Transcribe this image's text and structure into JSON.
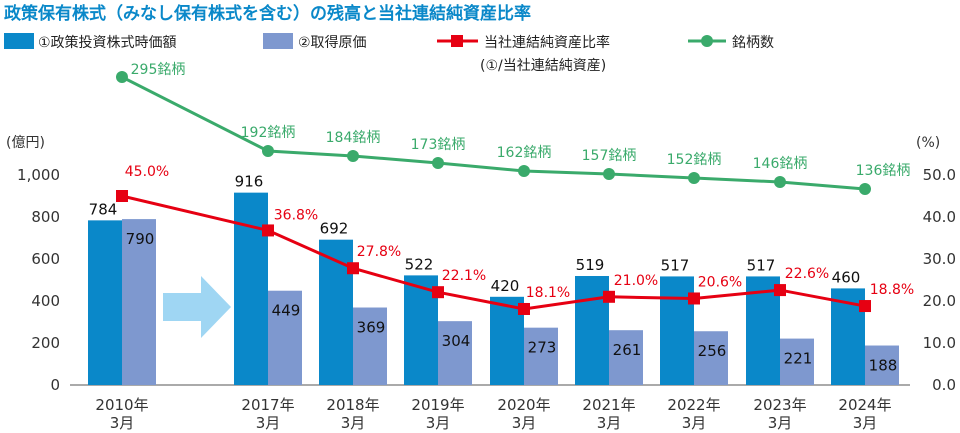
{
  "chart_data": {
    "type": "bar",
    "title": "政策保有株式（みなし保有株式を含む）の残高と当社連結純資産比率",
    "categories": [
      [
        "2010年",
        "3月"
      ],
      [
        "2017年",
        "3月"
      ],
      [
        "2018年",
        "3月"
      ],
      [
        "2019年",
        "3月"
      ],
      [
        "2020年",
        "3月"
      ],
      [
        "2021年",
        "3月"
      ],
      [
        "2022年",
        "3月"
      ],
      [
        "2023年",
        "3月"
      ],
      [
        "2024年",
        "3月"
      ]
    ],
    "left_axis": {
      "label": "(億円)",
      "ylim": [
        0,
        1000
      ],
      "ticks": [
        "0",
        "200",
        "400",
        "600",
        "800",
        "1,000"
      ]
    },
    "right_axis": {
      "label": "(%)",
      "ylim": [
        0,
        50
      ],
      "ticks": [
        "0.0",
        "10.0",
        "20.0",
        "30.0",
        "40.0",
        "50.0"
      ]
    },
    "series": [
      {
        "name": "①政策投資株式時価額",
        "kind": "bar",
        "color": "#0a88c9",
        "values": [
          784,
          916,
          692,
          522,
          420,
          519,
          517,
          517,
          460
        ],
        "labels": [
          "784",
          "916",
          "692",
          "522",
          "420",
          "519",
          "517",
          "517",
          "460"
        ]
      },
      {
        "name": "②取得原価",
        "kind": "bar",
        "color": "#7e98cf",
        "values": [
          790,
          449,
          369,
          304,
          273,
          261,
          256,
          221,
          188
        ],
        "labels": [
          "790",
          "449",
          "369",
          "304",
          "273",
          "261",
          "256",
          "221",
          "188"
        ]
      },
      {
        "name": "当社連結純資産比率",
        "name_line2": "(①/当社連結純資産)",
        "kind": "line",
        "axis": "right",
        "color": "#e60012",
        "values": [
          45.0,
          36.8,
          27.8,
          22.1,
          18.1,
          21.0,
          20.6,
          22.6,
          18.8
        ],
        "labels": [
          "45.0%",
          "36.8%",
          "27.8%",
          "22.1%",
          "18.1%",
          "21.0%",
          "20.6%",
          "22.6%",
          "18.8%"
        ]
      },
      {
        "name": "銘柄数",
        "kind": "line",
        "axis": "none",
        "color": "#3aaa6b",
        "values": [
          295,
          192,
          184,
          173,
          162,
          157,
          152,
          146,
          136
        ],
        "labels": [
          "295銘柄",
          "192銘柄",
          "184銘柄",
          "173銘柄",
          "162銘柄",
          "157銘柄",
          "152銘柄",
          "146銘柄",
          "136銘柄"
        ]
      }
    ],
    "grid": false,
    "legend": "top",
    "colors": {
      "title": "#0a88c9",
      "axis": "#333333",
      "arrow": "#9fd6f3"
    }
  }
}
